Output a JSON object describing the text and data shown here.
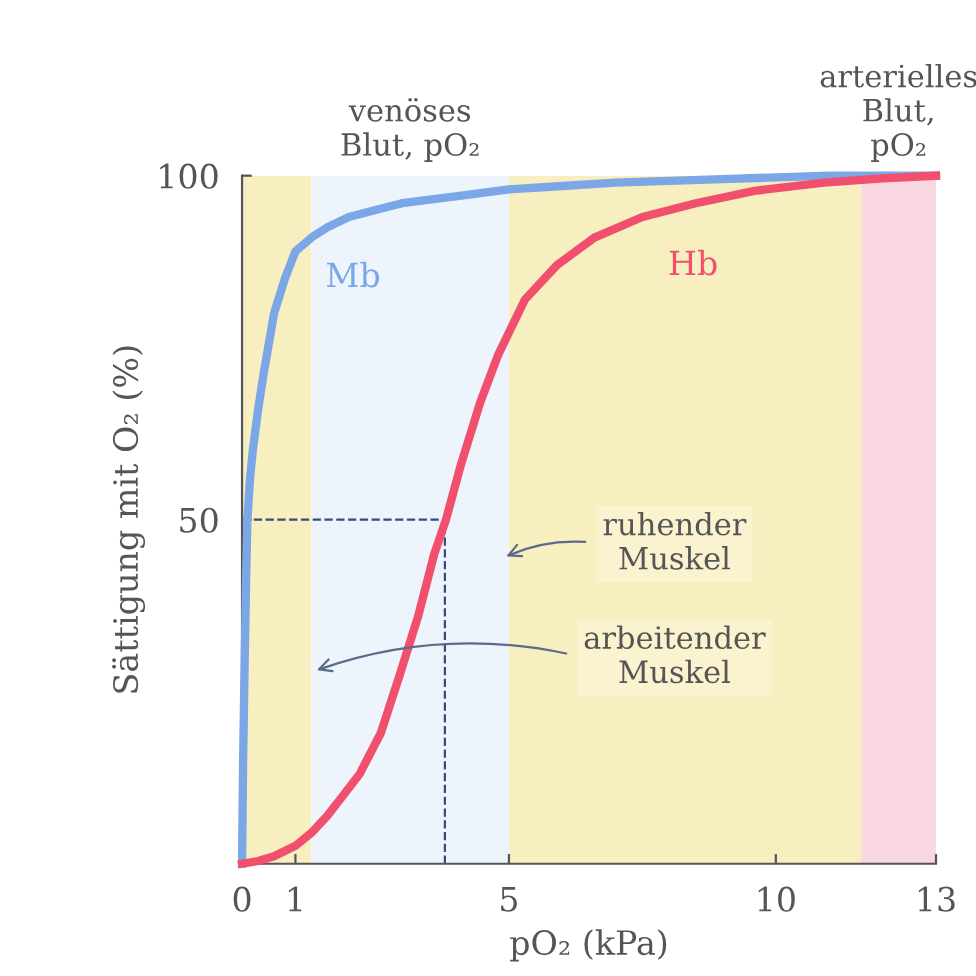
{
  "chart_data": {
    "type": "line",
    "xlabel": "pO₂ (kPa)",
    "ylabel": "Sättigung mit O₂ (%)",
    "series": [
      {
        "name": "Mb",
        "color": "#7ba7e6",
        "x": [
          0,
          0.02,
          0.05,
          0.08,
          0.1,
          0.15,
          0.2,
          0.3,
          0.4,
          0.6,
          0.8,
          1,
          1.3,
          1.6,
          2,
          2.5,
          3,
          4,
          5,
          6,
          7,
          9,
          11,
          13
        ],
        "values": [
          0,
          15,
          30,
          43,
          50,
          56,
          60,
          66,
          71,
          80,
          85,
          89,
          91,
          92.5,
          94,
          95,
          96,
          97,
          98,
          98.5,
          99,
          99.5,
          100,
          100
        ]
      },
      {
        "name": "Hb",
        "color": "#f0506e",
        "x": [
          0,
          0.3,
          0.6,
          1,
          1.3,
          1.6,
          1.9,
          2.2,
          2.6,
          2.96,
          3.3,
          3.6,
          3.82,
          4.1,
          4.46,
          4.8,
          5.3,
          5.9,
          6.6,
          7.5,
          8.5,
          9.6,
          10.9,
          12,
          13
        ],
        "values": [
          0,
          0.4,
          1.1,
          2.6,
          4.5,
          7,
          10,
          13,
          19,
          27.6,
          36,
          45,
          50,
          58,
          67,
          74,
          82,
          87,
          91,
          94,
          96,
          97.8,
          99,
          99.6,
          100
        ]
      }
    ],
    "xlim": [
      0,
      13
    ],
    "ylim": [
      0,
      100
    ],
    "xticks": [
      0,
      1,
      5,
      10,
      13
    ],
    "yticks": [
      50,
      100
    ],
    "bands": [
      {
        "axis": "x",
        "from": 0,
        "to": 1.3,
        "color": "#f8efc0"
      },
      {
        "axis": "x",
        "from": 1.3,
        "to": 5,
        "color": "#eef4fb",
        "label": "venöses\nBlut, pO₂"
      },
      {
        "axis": "x",
        "from": 5,
        "to": 11.6,
        "color": "#f8efc0"
      },
      {
        "axis": "x",
        "from": 11.6,
        "to": 13,
        "color": "#f9d7e0",
        "label": "arterielles\nBlut,\npO₂"
      }
    ],
    "ref_lines": [
      {
        "axis": "y",
        "value": 50,
        "color": "#3a4a7a",
        "line_style": "dashed"
      },
      {
        "axis": "x",
        "value": 3.8,
        "color": "#3a4a7a",
        "line_style": "dashed"
      }
    ],
    "annotations": [
      {
        "text": "ruhender\nMuskel",
        "x": 4.9,
        "y": 44.5
      },
      {
        "text": "arbeitender\nMuskel",
        "x": 1.35,
        "y": 28
      }
    ],
    "grid": false,
    "legend": false,
    "marker": "none",
    "line_style": "solid"
  }
}
